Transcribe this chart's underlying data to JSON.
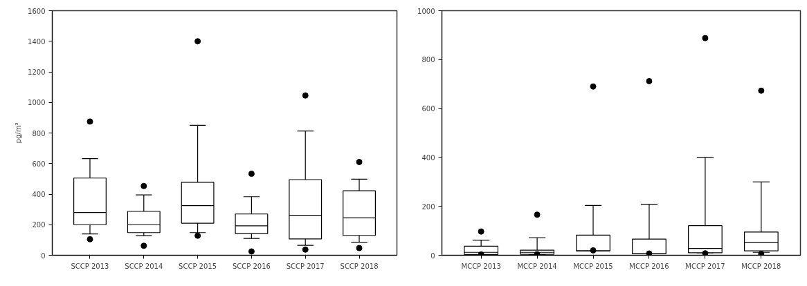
{
  "chart_data": [
    {
      "type": "box",
      "ylabel": "pg/m³",
      "categories": [
        "SCCP 2013",
        "SCCP 2014",
        "SCCP 2015",
        "SCCP 2016",
        "SCCP 2017",
        "SCCP 2018"
      ],
      "ylim": [
        0,
        1600
      ],
      "yticks": [
        0,
        200,
        400,
        600,
        800,
        1000,
        1200,
        1400,
        1600
      ],
      "grid": false,
      "color": "#000000",
      "boxes": [
        {
          "low": 140,
          "q1": 200,
          "median": 280,
          "q3": 505,
          "high": 632,
          "outliers": [
            875,
            105
          ]
        },
        {
          "low": 128,
          "q1": 148,
          "median": 200,
          "q3": 287,
          "high": 395,
          "outliers": [
            453,
            62
          ]
        },
        {
          "low": 148,
          "q1": 210,
          "median": 325,
          "q3": 477,
          "high": 850,
          "outliers": [
            1400,
            128
          ]
        },
        {
          "low": 110,
          "q1": 142,
          "median": 193,
          "q3": 270,
          "high": 383,
          "outliers": [
            533,
            25
          ]
        },
        {
          "low": 65,
          "q1": 107,
          "median": 262,
          "q3": 495,
          "high": 813,
          "outliers": [
            1045,
            37
          ]
        },
        {
          "low": 85,
          "q1": 130,
          "median": 245,
          "q3": 422,
          "high": 498,
          "outliers": [
            610,
            47
          ]
        }
      ]
    },
    {
      "type": "box",
      "categories": [
        "MCCP 2013",
        "MCCP 2014",
        "MCCP 2015",
        "MCCP 2016",
        "MCCP 2017",
        "MCCP 2018"
      ],
      "ylim": [
        0,
        1000
      ],
      "yticks": [
        0,
        200,
        400,
        600,
        800,
        1000
      ],
      "grid": false,
      "color": "#000000",
      "boxes": [
        {
          "low": 3,
          "q1": 3,
          "median": 12,
          "q3": 37,
          "high": 62,
          "outliers": [
            97,
            3
          ]
        },
        {
          "low": 3,
          "q1": 4,
          "median": 12,
          "q3": 21,
          "high": 72,
          "outliers": [
            166,
            4
          ]
        },
        {
          "low": 18,
          "q1": 18,
          "median": 18,
          "q3": 82,
          "high": 204,
          "outliers": [
            690,
            20
          ]
        },
        {
          "low": 6,
          "q1": 6,
          "median": 6,
          "q3": 66,
          "high": 208,
          "outliers": [
            712,
            7
          ]
        },
        {
          "low": 10,
          "q1": 10,
          "median": 28,
          "q3": 121,
          "high": 400,
          "outliers": [
            888,
            8
          ]
        },
        {
          "low": 12,
          "q1": 18,
          "median": 52,
          "q3": 95,
          "high": 300,
          "outliers": [
            673,
            5
          ]
        }
      ]
    }
  ]
}
